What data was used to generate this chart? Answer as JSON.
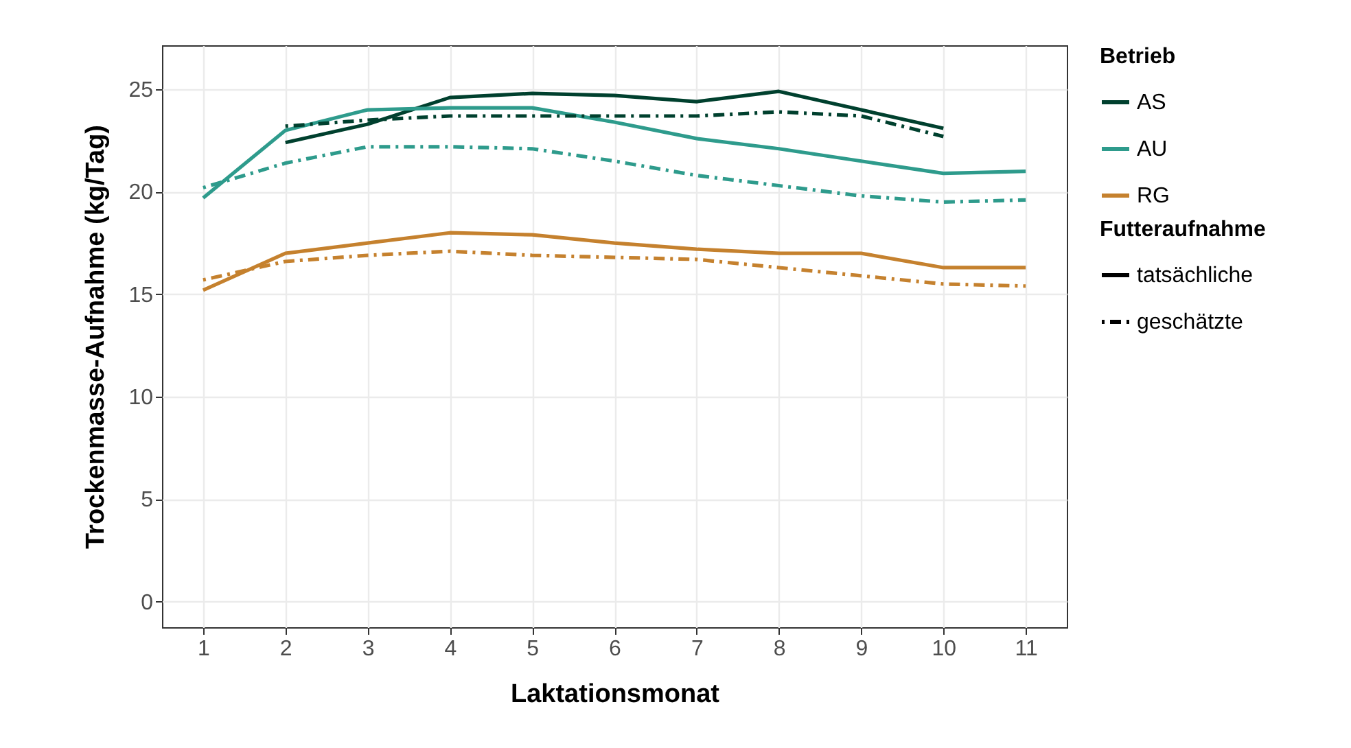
{
  "chart_data": {
    "type": "line",
    "xlabel": "Laktationsmonat",
    "ylabel": "Trockenmasse-Aufnahme (kg/Tag)",
    "legend_title": "Betrieb",
    "annotations": [
      "Futteraufnahme",
      "tatsächliche",
      "geschätzte"
    ],
    "x": [
      1,
      2,
      3,
      4,
      5,
      6,
      7,
      8,
      9,
      10,
      11
    ],
    "series": [
      {
        "name": "AS",
        "color": "#00402e",
        "line_style": "solid",
        "values": [
          null,
          22.4,
          23.3,
          24.6,
          24.8,
          24.7,
          24.4,
          24.9,
          24.0,
          23.1,
          null
        ]
      },
      {
        "name": "AU",
        "color": "#2e9b8c",
        "line_style": "solid",
        "values": [
          19.7,
          23.0,
          24.0,
          24.1,
          24.1,
          23.4,
          22.6,
          22.1,
          21.5,
          20.9,
          21.0
        ]
      },
      {
        "name": "RG",
        "color": "#c5812e",
        "line_style": "solid",
        "values": [
          15.2,
          17.0,
          17.5,
          18.0,
          17.9,
          17.5,
          17.2,
          17.0,
          17.0,
          16.3,
          16.3
        ]
      },
      {
        "color": "#00402e",
        "line_style": "dashed",
        "values": [
          null,
          23.2,
          23.5,
          23.7,
          23.7,
          23.7,
          23.7,
          23.9,
          23.7,
          22.7,
          null
        ]
      },
      {
        "color": "#2e9b8c",
        "line_style": "dashed",
        "values": [
          20.2,
          21.4,
          22.2,
          22.2,
          22.1,
          21.5,
          20.8,
          20.3,
          19.8,
          19.5,
          19.6
        ]
      },
      {
        "color": "#c5812e",
        "line_style": "dashed",
        "values": [
          15.7,
          16.6,
          16.9,
          17.1,
          16.9,
          16.8,
          16.7,
          16.3,
          15.9,
          15.5,
          15.4
        ]
      }
    ],
    "xlim": [
      0.5,
      11.5
    ],
    "xticks": [
      1,
      2,
      3,
      4,
      5,
      6,
      7,
      8,
      9,
      10,
      11
    ],
    "ylim": [
      -1.25,
      27.15
    ],
    "yticks": [
      0,
      5,
      10,
      15,
      20,
      25
    ],
    "grid": true,
    "legend": "right",
    "marker": "none"
  }
}
